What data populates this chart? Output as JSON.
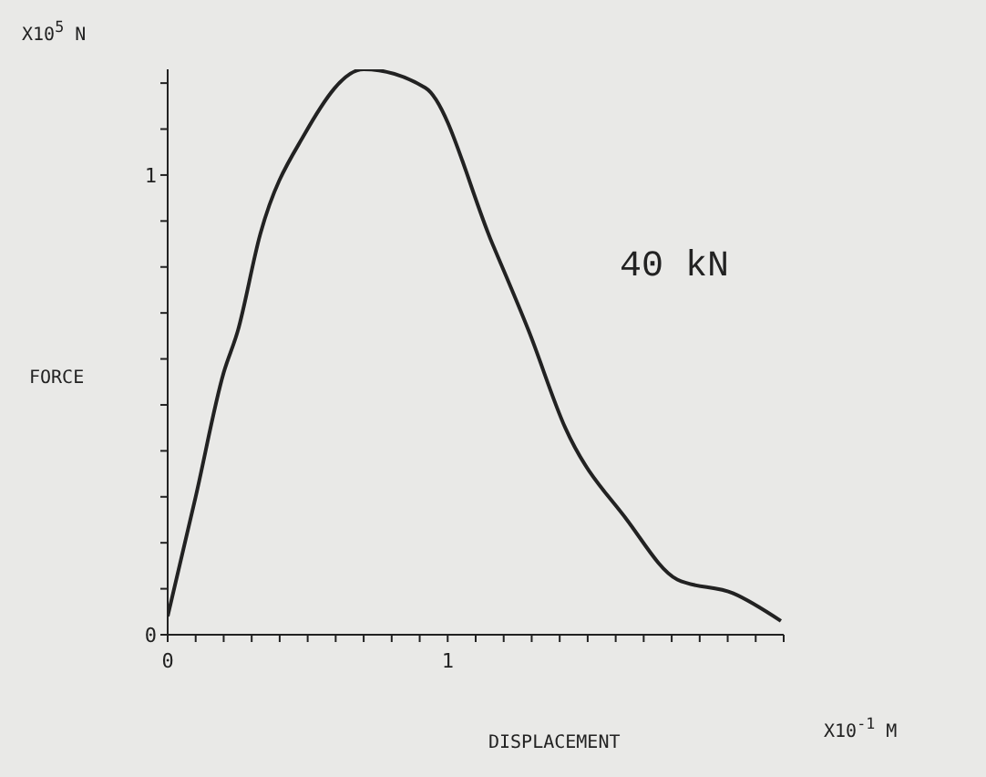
{
  "chart_data": {
    "type": "line",
    "xlabel": "DISPLACEMENT",
    "ylabel": "FORCE",
    "annotations": [
      "X10$^{5}$ N",
      "X10$^{-1}$ M",
      "40 kN"
    ],
    "x": [
      0,
      0.1,
      0.2,
      0.25,
      0.33,
      0.49,
      0.7,
      0.92,
      1.16,
      1.29,
      1.42,
      1.64,
      1.82,
      2.02,
      2.19
    ],
    "series": [
      {
        "color": "#222222",
        "values": [
          0.04,
          0.3,
          0.57,
          0.66,
          0.87,
          1.09,
          1.23,
          1.19,
          0.85,
          0.66,
          0.45,
          0.25,
          0.12,
          0.09,
          0.03
        ]
      }
    ],
    "xlim": [
      0,
      2.2
    ],
    "xticks": [
      0,
      {
        "value": 0.1,
        "label": null
      },
      {
        "value": 0.2,
        "label": null
      },
      {
        "value": 0.3,
        "label": null
      },
      {
        "value": 0.4,
        "label": null
      },
      {
        "value": 0.5,
        "label": null
      },
      {
        "value": 0.6,
        "label": null
      },
      {
        "value": 0.7,
        "label": null
      },
      {
        "value": 0.8,
        "label": null
      },
      {
        "value": 0.9,
        "label": null
      },
      1,
      {
        "value": 1.1,
        "label": null
      },
      {
        "value": 1.2,
        "label": null
      },
      {
        "value": 1.3,
        "label": null
      },
      {
        "value": 1.4,
        "label": null
      },
      {
        "value": 1.5,
        "label": null
      },
      {
        "value": 1.6,
        "label": null
      },
      {
        "value": 1.7,
        "label": null
      },
      {
        "value": 1.8,
        "label": null
      },
      {
        "value": 1.9,
        "label": null
      },
      {
        "value": 2.0,
        "label": null
      },
      {
        "value": 2.1,
        "label": null
      },
      {
        "value": 2.2,
        "label": null
      }
    ],
    "ylim": [
      0,
      1.23
    ],
    "yticks": [
      0,
      {
        "value": 0.1,
        "label": null
      },
      {
        "value": 0.2,
        "label": null
      },
      {
        "value": 0.3,
        "label": null
      },
      {
        "value": 0.4,
        "label": null
      },
      {
        "value": 0.5,
        "label": null
      },
      {
        "value": 0.6,
        "label": null
      },
      {
        "value": 0.7,
        "label": null
      },
      {
        "value": 0.8,
        "label": null
      },
      {
        "value": 0.9,
        "label": null
      },
      1,
      {
        "value": 1.1,
        "label": null
      },
      {
        "value": 1.2,
        "label": null
      }
    ],
    "grid": false,
    "legend": false,
    "marker": "none",
    "line_style": "solid"
  }
}
